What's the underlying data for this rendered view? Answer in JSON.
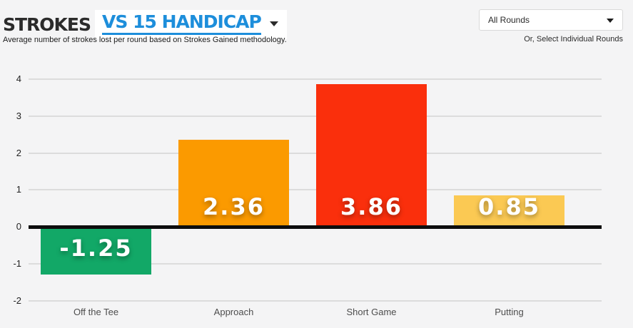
{
  "header": {
    "title_static": "STROKES",
    "title_selected": "VS 15 HANDICAP",
    "subtitle": "Average number of strokes lost per round based on Strokes Gained methodology.",
    "rounds_select_value": "All Rounds",
    "rounds_link": "Or, Select Individual Rounds"
  },
  "colors": {
    "accent_blue": "#1d8edb",
    "page_background": "#f4f4f5",
    "zero_line": "#0d0d0d",
    "gridline": "#dcdcdc"
  },
  "chart_data": {
    "type": "bar",
    "title": "Strokes vs 15 Handicap",
    "categories": [
      "Off the Tee",
      "Approach",
      "Short Game",
      "Putting"
    ],
    "values": [
      -1.25,
      2.36,
      3.86,
      0.85
    ],
    "value_labels": [
      "-1.25",
      "2.36",
      "3.86",
      "0.85"
    ],
    "bar_colors": [
      "#12a867",
      "#fb9a00",
      "#fa2f0c",
      "#fbc953"
    ],
    "xlabel": "",
    "ylabel": "",
    "ylim": [
      -2,
      4
    ],
    "yticks": [
      4,
      3,
      2,
      1,
      0,
      -1,
      -2
    ],
    "grid": true,
    "legend": false
  }
}
